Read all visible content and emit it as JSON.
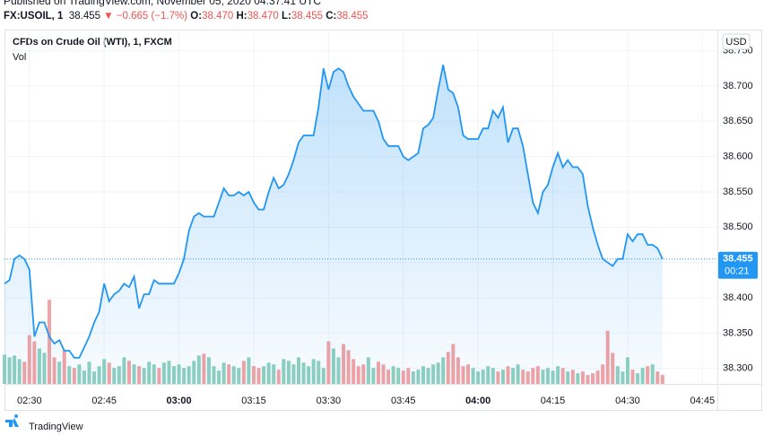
{
  "header": {
    "published": "Published on TradingView.com, November 05, 2020 04:37:41 UTC",
    "symbol": "FX:USOIL, 1",
    "last": "38.455",
    "change": "▼ −0.665 (−1.7%)",
    "ohlc": [
      {
        "label": "O:",
        "value": "38.470"
      },
      {
        "label": "H:",
        "value": "38.470"
      },
      {
        "label": "L:",
        "value": "38.455"
      },
      {
        "label": "C:",
        "value": "38.455"
      }
    ]
  },
  "footer": {
    "brand": "TradingView"
  },
  "chart_data": {
    "type": "line",
    "currency": "USD",
    "last_label": "38.455",
    "countdown": "00:21",
    "x": [
      "02:25",
      "02:26",
      "02:27",
      "02:28",
      "02:29",
      "02:30",
      "02:31",
      "02:32",
      "02:33",
      "02:34",
      "02:35",
      "02:36",
      "02:37",
      "02:38",
      "02:39",
      "02:40",
      "02:41",
      "02:42",
      "02:43",
      "02:44",
      "02:45",
      "02:46",
      "02:47",
      "02:48",
      "02:49",
      "02:50",
      "02:51",
      "02:52",
      "02:53",
      "02:54",
      "02:55",
      "02:56",
      "02:57",
      "02:58",
      "02:59",
      "03:00",
      "03:01",
      "03:02",
      "03:03",
      "03:04",
      "03:05",
      "03:06",
      "03:07",
      "03:08",
      "03:09",
      "03:10",
      "03:11",
      "03:12",
      "03:13",
      "03:14",
      "03:15",
      "03:16",
      "03:17",
      "03:18",
      "03:19",
      "03:20",
      "03:21",
      "03:22",
      "03:23",
      "03:24",
      "03:25",
      "03:26",
      "03:27",
      "03:28",
      "03:29",
      "03:30",
      "03:31",
      "03:32",
      "03:33",
      "03:34",
      "03:35",
      "03:36",
      "03:37",
      "03:38",
      "03:39",
      "03:40",
      "03:41",
      "03:42",
      "03:43",
      "03:44",
      "03:45",
      "03:46",
      "03:47",
      "03:48",
      "03:49",
      "03:50",
      "03:51",
      "03:52",
      "03:53",
      "03:54",
      "03:55",
      "03:56",
      "03:57",
      "03:58",
      "03:59",
      "04:00",
      "04:01",
      "04:02",
      "04:03",
      "04:04",
      "04:05",
      "04:06",
      "04:07",
      "04:08",
      "04:09",
      "04:10",
      "04:11",
      "04:12",
      "04:13",
      "04:14",
      "04:15",
      "04:16",
      "04:17",
      "04:18",
      "04:19",
      "04:20",
      "04:21",
      "04:22",
      "04:23",
      "04:24",
      "04:25",
      "04:26",
      "04:27",
      "04:28",
      "04:29",
      "04:30",
      "04:31",
      "04:32",
      "04:33",
      "04:34",
      "04:35",
      "04:36",
      "04:37"
    ],
    "series": [
      {
        "name": "CFDs on Crude Oil (WTI), 1, FXCM",
        "color": "#2196f3",
        "values": [
          38.42,
          38.425,
          38.455,
          38.46,
          38.455,
          38.44,
          38.345,
          38.365,
          38.365,
          38.345,
          38.335,
          38.34,
          38.325,
          38.325,
          38.315,
          38.315,
          38.33,
          38.345,
          38.365,
          38.38,
          38.42,
          38.395,
          38.405,
          38.41,
          38.42,
          38.415,
          38.43,
          38.385,
          38.405,
          38.405,
          38.425,
          38.42,
          38.42,
          38.42,
          38.42,
          38.435,
          38.455,
          38.495,
          38.515,
          38.52,
          38.515,
          38.515,
          38.515,
          38.535,
          38.555,
          38.545,
          38.545,
          38.55,
          38.545,
          38.55,
          38.535,
          38.525,
          38.525,
          38.55,
          38.57,
          38.555,
          38.56,
          38.575,
          38.595,
          38.62,
          38.63,
          38.63,
          38.63,
          38.67,
          38.725,
          38.695,
          38.72,
          38.725,
          38.72,
          38.7,
          38.685,
          38.675,
          38.665,
          38.665,
          38.665,
          38.65,
          38.625,
          38.615,
          38.615,
          38.615,
          38.6,
          38.595,
          38.6,
          38.605,
          38.64,
          38.645,
          38.655,
          38.695,
          38.73,
          38.695,
          38.69,
          38.67,
          38.63,
          38.625,
          38.625,
          38.625,
          38.64,
          38.64,
          38.665,
          38.655,
          38.67,
          38.62,
          38.64,
          38.64,
          38.615,
          38.575,
          38.535,
          38.52,
          38.55,
          38.56,
          38.585,
          38.605,
          38.585,
          38.595,
          38.585,
          38.585,
          38.575,
          38.53,
          38.5,
          38.475,
          38.455,
          38.45,
          38.445,
          38.455,
          38.455,
          38.49,
          38.48,
          38.49,
          38.49,
          38.475,
          38.475,
          38.47,
          38.455
        ]
      },
      {
        "name": "Vol",
        "up_color": "#8fd0bf",
        "down_color": "#f2a3a3",
        "values": [
          33,
          30,
          32,
          28,
          25,
          55,
          48,
          40,
          35,
          95,
          30,
          25,
          38,
          20,
          18,
          22,
          15,
          25,
          14,
          20,
          28,
          24,
          18,
          20,
          30,
          26,
          22,
          20,
          18,
          25,
          22,
          18,
          24,
          26,
          20,
          22,
          18,
          20,
          26,
          32,
          34,
          30,
          20,
          15,
          24,
          22,
          20,
          18,
          26,
          30,
          20,
          18,
          20,
          24,
          22,
          16,
          28,
          26,
          22,
          30,
          24,
          20,
          28,
          26,
          18,
          48,
          40,
          30,
          45,
          38,
          28,
          20,
          22,
          30,
          18,
          25,
          22,
          16,
          20,
          18,
          15,
          18,
          14,
          16,
          20,
          18,
          22,
          24,
          30,
          36,
          45,
          30,
          20,
          22,
          18,
          14,
          16,
          20,
          18,
          14,
          16,
          20,
          18,
          22,
          16,
          14,
          18,
          20,
          16,
          18,
          15,
          20,
          18,
          14,
          16,
          12,
          14,
          10,
          12,
          15,
          22,
          60,
          35,
          20,
          14,
          30,
          16,
          12,
          18,
          20,
          22,
          14,
          10
        ]
      }
    ],
    "xlim": [
      "02:25",
      "04:48"
    ],
    "xticks": [
      "02:30",
      "02:45",
      "03:00",
      "03:15",
      "03:30",
      "03:45",
      "04:00",
      "04:15",
      "04:30",
      "04:45"
    ],
    "ylim": [
      38.278,
      38.78
    ],
    "volume_lim": [
      0,
      400
    ],
    "yticks": [
      {
        "value": 38.3,
        "label": "38.300"
      },
      {
        "value": 38.35,
        "label": "38.350"
      },
      {
        "value": 38.4,
        "label": "38.400"
      },
      {
        "value": 38.45,
        "label": "38.450"
      },
      {
        "value": 38.5,
        "label": "38.500"
      },
      {
        "value": 38.55,
        "label": "38.550"
      },
      {
        "value": 38.6,
        "label": "38.600"
      },
      {
        "value": 38.65,
        "label": "38.650"
      },
      {
        "value": 38.7,
        "label": "38.700"
      },
      {
        "value": 38.75,
        "label": "38.750"
      }
    ],
    "grid": true
  }
}
